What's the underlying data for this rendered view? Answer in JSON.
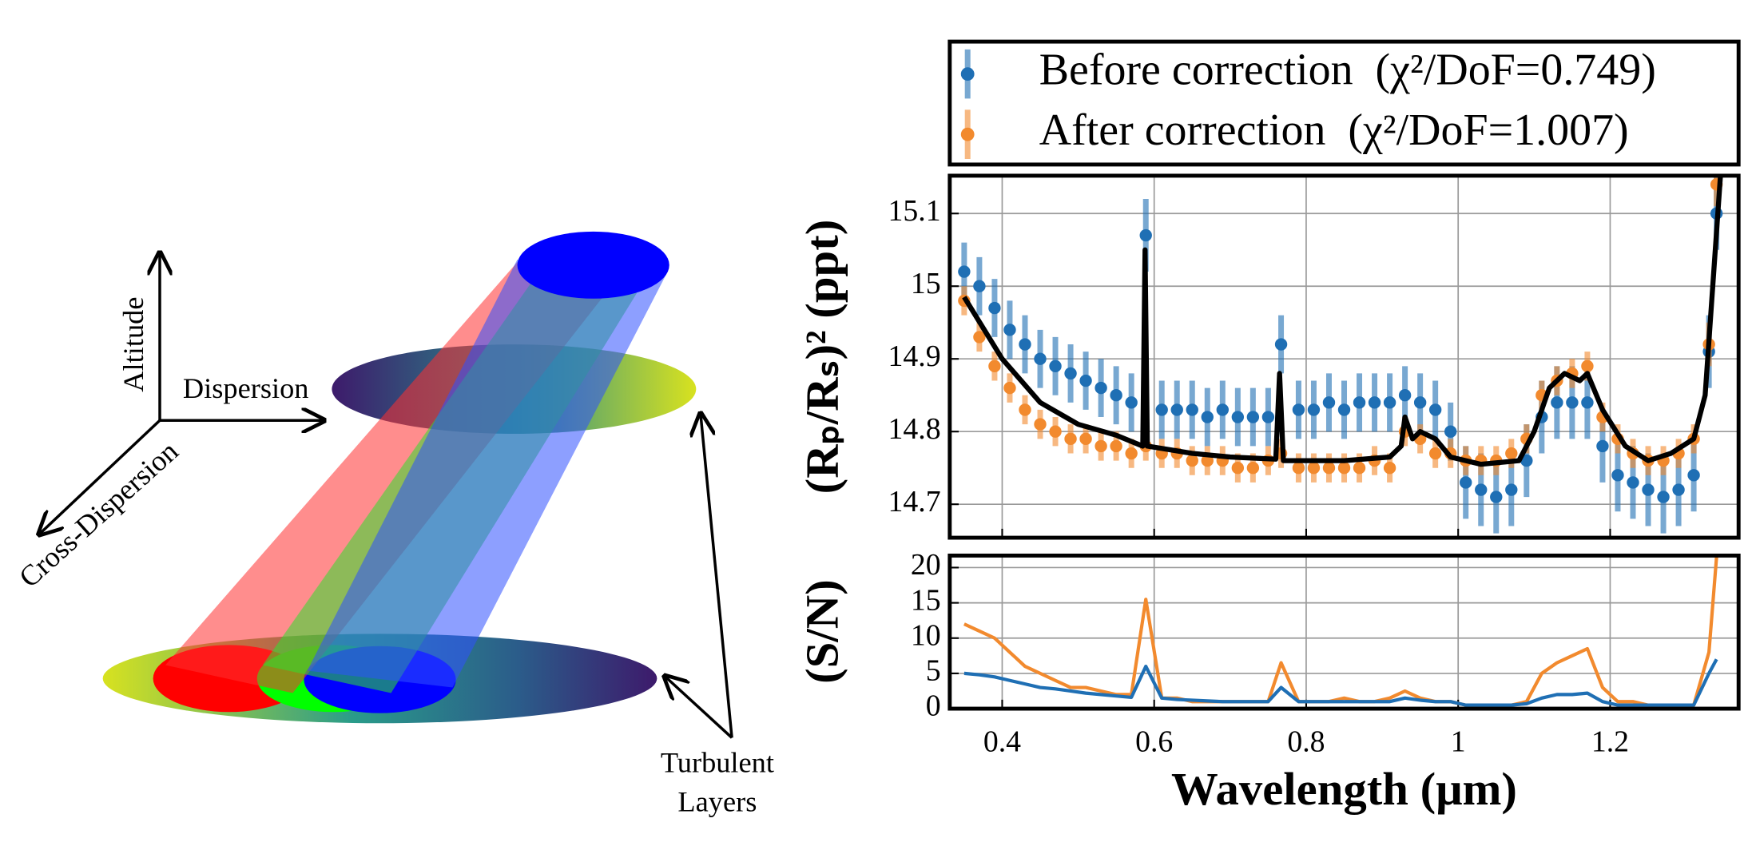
{
  "diagram": {
    "labels": {
      "altitude": "Altitude",
      "dispersion": "Dispersion",
      "cross_dispersion": "Cross-Dispersion",
      "turbulent_layers": [
        "Turbulent",
        "Layers"
      ]
    }
  },
  "chart_data": [
    {
      "type": "scatter",
      "ylabel": "(Rₚ/Rₛ)² (ppt)",
      "x": [
        0.35,
        0.37,
        0.39,
        0.41,
        0.43,
        0.45,
        0.47,
        0.49,
        0.51,
        0.53,
        0.55,
        0.57,
        0.589,
        0.61,
        0.63,
        0.65,
        0.67,
        0.69,
        0.71,
        0.73,
        0.75,
        0.767,
        0.79,
        0.81,
        0.83,
        0.85,
        0.87,
        0.89,
        0.91,
        0.93,
        0.95,
        0.97,
        0.99,
        1.01,
        1.03,
        1.05,
        1.07,
        1.09,
        1.11,
        1.13,
        1.15,
        1.17,
        1.19,
        1.21,
        1.23,
        1.25,
        1.27,
        1.29,
        1.31,
        1.33,
        1.34
      ],
      "series": [
        {
          "name": "Before correction  (χ²/DoF=0.749)",
          "color": "#1f6fb4",
          "values": [
            15.02,
            15.0,
            14.97,
            14.94,
            14.92,
            14.9,
            14.89,
            14.88,
            14.87,
            14.86,
            14.85,
            14.84,
            15.07,
            14.83,
            14.83,
            14.83,
            14.82,
            14.83,
            14.82,
            14.82,
            14.82,
            14.92,
            14.83,
            14.83,
            14.84,
            14.83,
            14.84,
            14.84,
            14.84,
            14.85,
            14.84,
            14.83,
            14.8,
            14.73,
            14.72,
            14.71,
            14.72,
            14.76,
            14.82,
            14.84,
            14.84,
            14.84,
            14.78,
            14.74,
            14.73,
            14.72,
            14.71,
            14.72,
            14.74,
            14.91,
            15.1
          ],
          "errors": [
            0.04,
            0.04,
            0.04,
            0.04,
            0.04,
            0.04,
            0.04,
            0.04,
            0.04,
            0.04,
            0.04,
            0.04,
            0.05,
            0.04,
            0.04,
            0.04,
            0.04,
            0.04,
            0.04,
            0.04,
            0.04,
            0.04,
            0.04,
            0.04,
            0.04,
            0.04,
            0.04,
            0.04,
            0.04,
            0.04,
            0.04,
            0.04,
            0.04,
            0.05,
            0.05,
            0.05,
            0.05,
            0.05,
            0.05,
            0.05,
            0.05,
            0.05,
            0.05,
            0.05,
            0.05,
            0.05,
            0.05,
            0.05,
            0.05,
            0.05,
            0.05
          ]
        },
        {
          "name": "After correction  (χ²/DoF=1.007)",
          "color": "#f28a2e",
          "values": [
            14.98,
            14.93,
            14.89,
            14.86,
            14.83,
            14.81,
            14.8,
            14.79,
            14.79,
            14.78,
            14.78,
            14.77,
            14.78,
            14.77,
            14.77,
            14.76,
            14.76,
            14.76,
            14.75,
            14.75,
            14.76,
            14.77,
            14.75,
            14.75,
            14.75,
            14.75,
            14.75,
            14.76,
            14.75,
            14.8,
            14.79,
            14.77,
            14.77,
            14.76,
            14.76,
            14.76,
            14.77,
            14.79,
            14.85,
            14.87,
            14.88,
            14.89,
            14.82,
            14.79,
            14.77,
            14.76,
            14.76,
            14.77,
            14.79,
            14.92,
            15.14
          ],
          "errors": [
            0.02,
            0.02,
            0.02,
            0.02,
            0.02,
            0.02,
            0.02,
            0.02,
            0.02,
            0.02,
            0.02,
            0.02,
            0.02,
            0.02,
            0.02,
            0.02,
            0.02,
            0.02,
            0.02,
            0.02,
            0.02,
            0.02,
            0.02,
            0.02,
            0.02,
            0.02,
            0.02,
            0.02,
            0.02,
            0.02,
            0.02,
            0.02,
            0.02,
            0.02,
            0.02,
            0.02,
            0.02,
            0.02,
            0.02,
            0.02,
            0.02,
            0.02,
            0.02,
            0.02,
            0.02,
            0.02,
            0.02,
            0.02,
            0.02,
            0.03,
            0.03
          ]
        }
      ],
      "model": {
        "color": "#000000",
        "x": [
          0.35,
          0.4,
          0.45,
          0.5,
          0.55,
          0.585,
          0.588,
          0.591,
          0.65,
          0.7,
          0.76,
          0.765,
          0.77,
          0.85,
          0.91,
          0.925,
          0.93,
          0.94,
          0.95,
          0.97,
          0.99,
          1.03,
          1.08,
          1.1,
          1.12,
          1.14,
          1.16,
          1.17,
          1.19,
          1.22,
          1.25,
          1.28,
          1.31,
          1.325,
          1.335,
          1.345
        ],
        "values": [
          14.985,
          14.9,
          14.84,
          14.81,
          14.795,
          14.78,
          15.05,
          14.78,
          14.77,
          14.765,
          14.762,
          14.88,
          14.76,
          14.76,
          14.765,
          14.78,
          14.82,
          14.79,
          14.8,
          14.79,
          14.765,
          14.755,
          14.76,
          14.8,
          14.86,
          14.88,
          14.87,
          14.88,
          14.83,
          14.78,
          14.76,
          14.77,
          14.79,
          14.85,
          15.0,
          15.15
        ]
      },
      "xlim": [
        0.331,
        1.369
      ],
      "ylim": [
        14.654,
        15.152
      ],
      "xticks": [
        0.4,
        0.6,
        0.8,
        1,
        1.2
      ],
      "yticks": [
        14.7,
        14.8,
        14.9,
        15,
        15.1
      ],
      "grid": true
    },
    {
      "type": "line",
      "ylabel": "(S/N)",
      "xlabel": "Wavelength (μm)",
      "x": [
        0.35,
        0.37,
        0.39,
        0.41,
        0.43,
        0.45,
        0.47,
        0.49,
        0.51,
        0.53,
        0.55,
        0.57,
        0.589,
        0.61,
        0.63,
        0.65,
        0.67,
        0.69,
        0.71,
        0.73,
        0.75,
        0.767,
        0.79,
        0.81,
        0.83,
        0.85,
        0.87,
        0.89,
        0.91,
        0.93,
        0.95,
        0.97,
        0.99,
        1.01,
        1.03,
        1.05,
        1.07,
        1.09,
        1.11,
        1.13,
        1.15,
        1.17,
        1.19,
        1.21,
        1.23,
        1.25,
        1.27,
        1.29,
        1.31,
        1.33,
        1.34
      ],
      "series": [
        {
          "color": "#f28a2e",
          "values": [
            12,
            11,
            10,
            8,
            6,
            5,
            4,
            3,
            3,
            2.5,
            2,
            2,
            15.5,
            1.5,
            1.5,
            1,
            1,
            1,
            1,
            1,
            1,
            6.5,
            1,
            1,
            1,
            1.5,
            1,
            1,
            1.5,
            2.5,
            1.5,
            1,
            1,
            0.5,
            0.5,
            0.5,
            0.5,
            1,
            5,
            6.5,
            7.5,
            8.5,
            3,
            1,
            1,
            0.5,
            0.5,
            0.5,
            0.5,
            8,
            21.5
          ]
        },
        {
          "color": "#1f6fb4",
          "values": [
            5,
            4.8,
            4.5,
            4,
            3.5,
            3,
            2.8,
            2.5,
            2.2,
            2,
            1.8,
            1.6,
            6,
            1.5,
            1.3,
            1.2,
            1.1,
            1,
            1,
            1,
            1,
            3,
            1,
            1,
            1,
            1,
            1,
            1,
            1,
            1.5,
            1.2,
            1,
            1,
            0.5,
            0.5,
            0.5,
            0.5,
            0.7,
            1.5,
            2,
            2,
            2.2,
            1,
            0.5,
            0.5,
            0.5,
            0.5,
            0.5,
            0.5,
            5,
            7
          ]
        }
      ],
      "xlim": [
        0.331,
        1.369
      ],
      "ylim": [
        0,
        21.7
      ],
      "xticks": [
        0.4,
        0.6,
        0.8,
        1,
        1.2
      ],
      "yticks": [
        0,
        5,
        10,
        15,
        20
      ],
      "grid": true
    }
  ]
}
